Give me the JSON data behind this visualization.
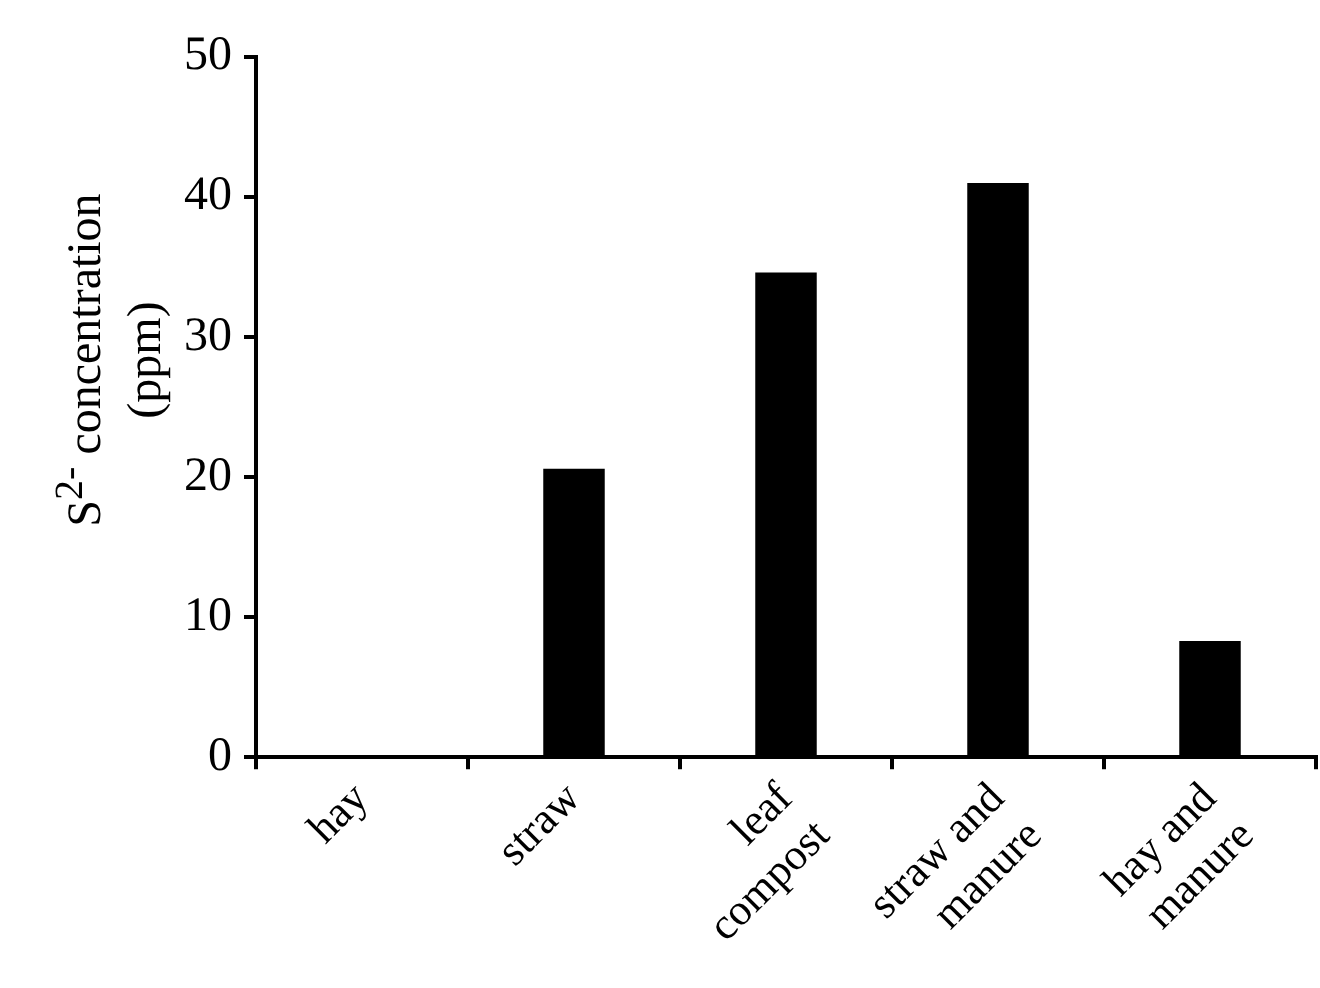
{
  "chart_data": {
    "type": "bar",
    "ylabel": "S$^{2-}$ concentration (ppm)",
    "categories": [
      "hay",
      "straw",
      "leaf compost",
      "straw and manure",
      "hay and manure"
    ],
    "values": [
      0,
      20.6,
      34.6,
      41.0,
      8.3
    ],
    "color": "#000000",
    "ylim": [
      0,
      50
    ],
    "yticks": [
      0,
      10,
      20,
      30,
      40,
      50
    ],
    "grid": false,
    "legend": false
  }
}
